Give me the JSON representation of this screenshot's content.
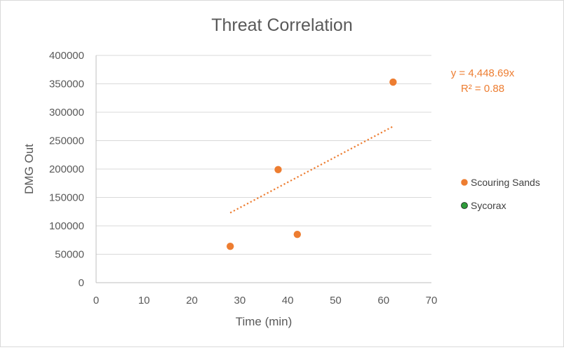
{
  "chart_data": {
    "type": "scatter",
    "title": "Threat Correlation",
    "xlabel": "Time (min)",
    "ylabel": "DMG Out",
    "xlim": [
      0,
      70
    ],
    "ylim": [
      0,
      400000
    ],
    "x_ticks": [
      0,
      10,
      20,
      30,
      40,
      50,
      60,
      70
    ],
    "y_ticks": [
      0,
      50000,
      100000,
      150000,
      200000,
      250000,
      300000,
      350000,
      400000
    ],
    "grid": "horizontal",
    "legend_position": "right",
    "series": [
      {
        "name": "Scouring Sands",
        "color": "#ed7d31",
        "points": [
          {
            "x": 28,
            "y": 64000
          },
          {
            "x": 38,
            "y": 199000
          },
          {
            "x": 42,
            "y": 85000
          },
          {
            "x": 62,
            "y": 353000
          }
        ],
        "trendline": {
          "type": "linear",
          "style": "dotted",
          "x_range": [
            28,
            62
          ],
          "y_range": [
            123000,
            275000
          ],
          "equation": "y = 4,448.69x",
          "r_squared_label": "R² = 0.88"
        }
      },
      {
        "name": "Sycorax",
        "color": "#2e9b3a",
        "points": []
      }
    ]
  }
}
